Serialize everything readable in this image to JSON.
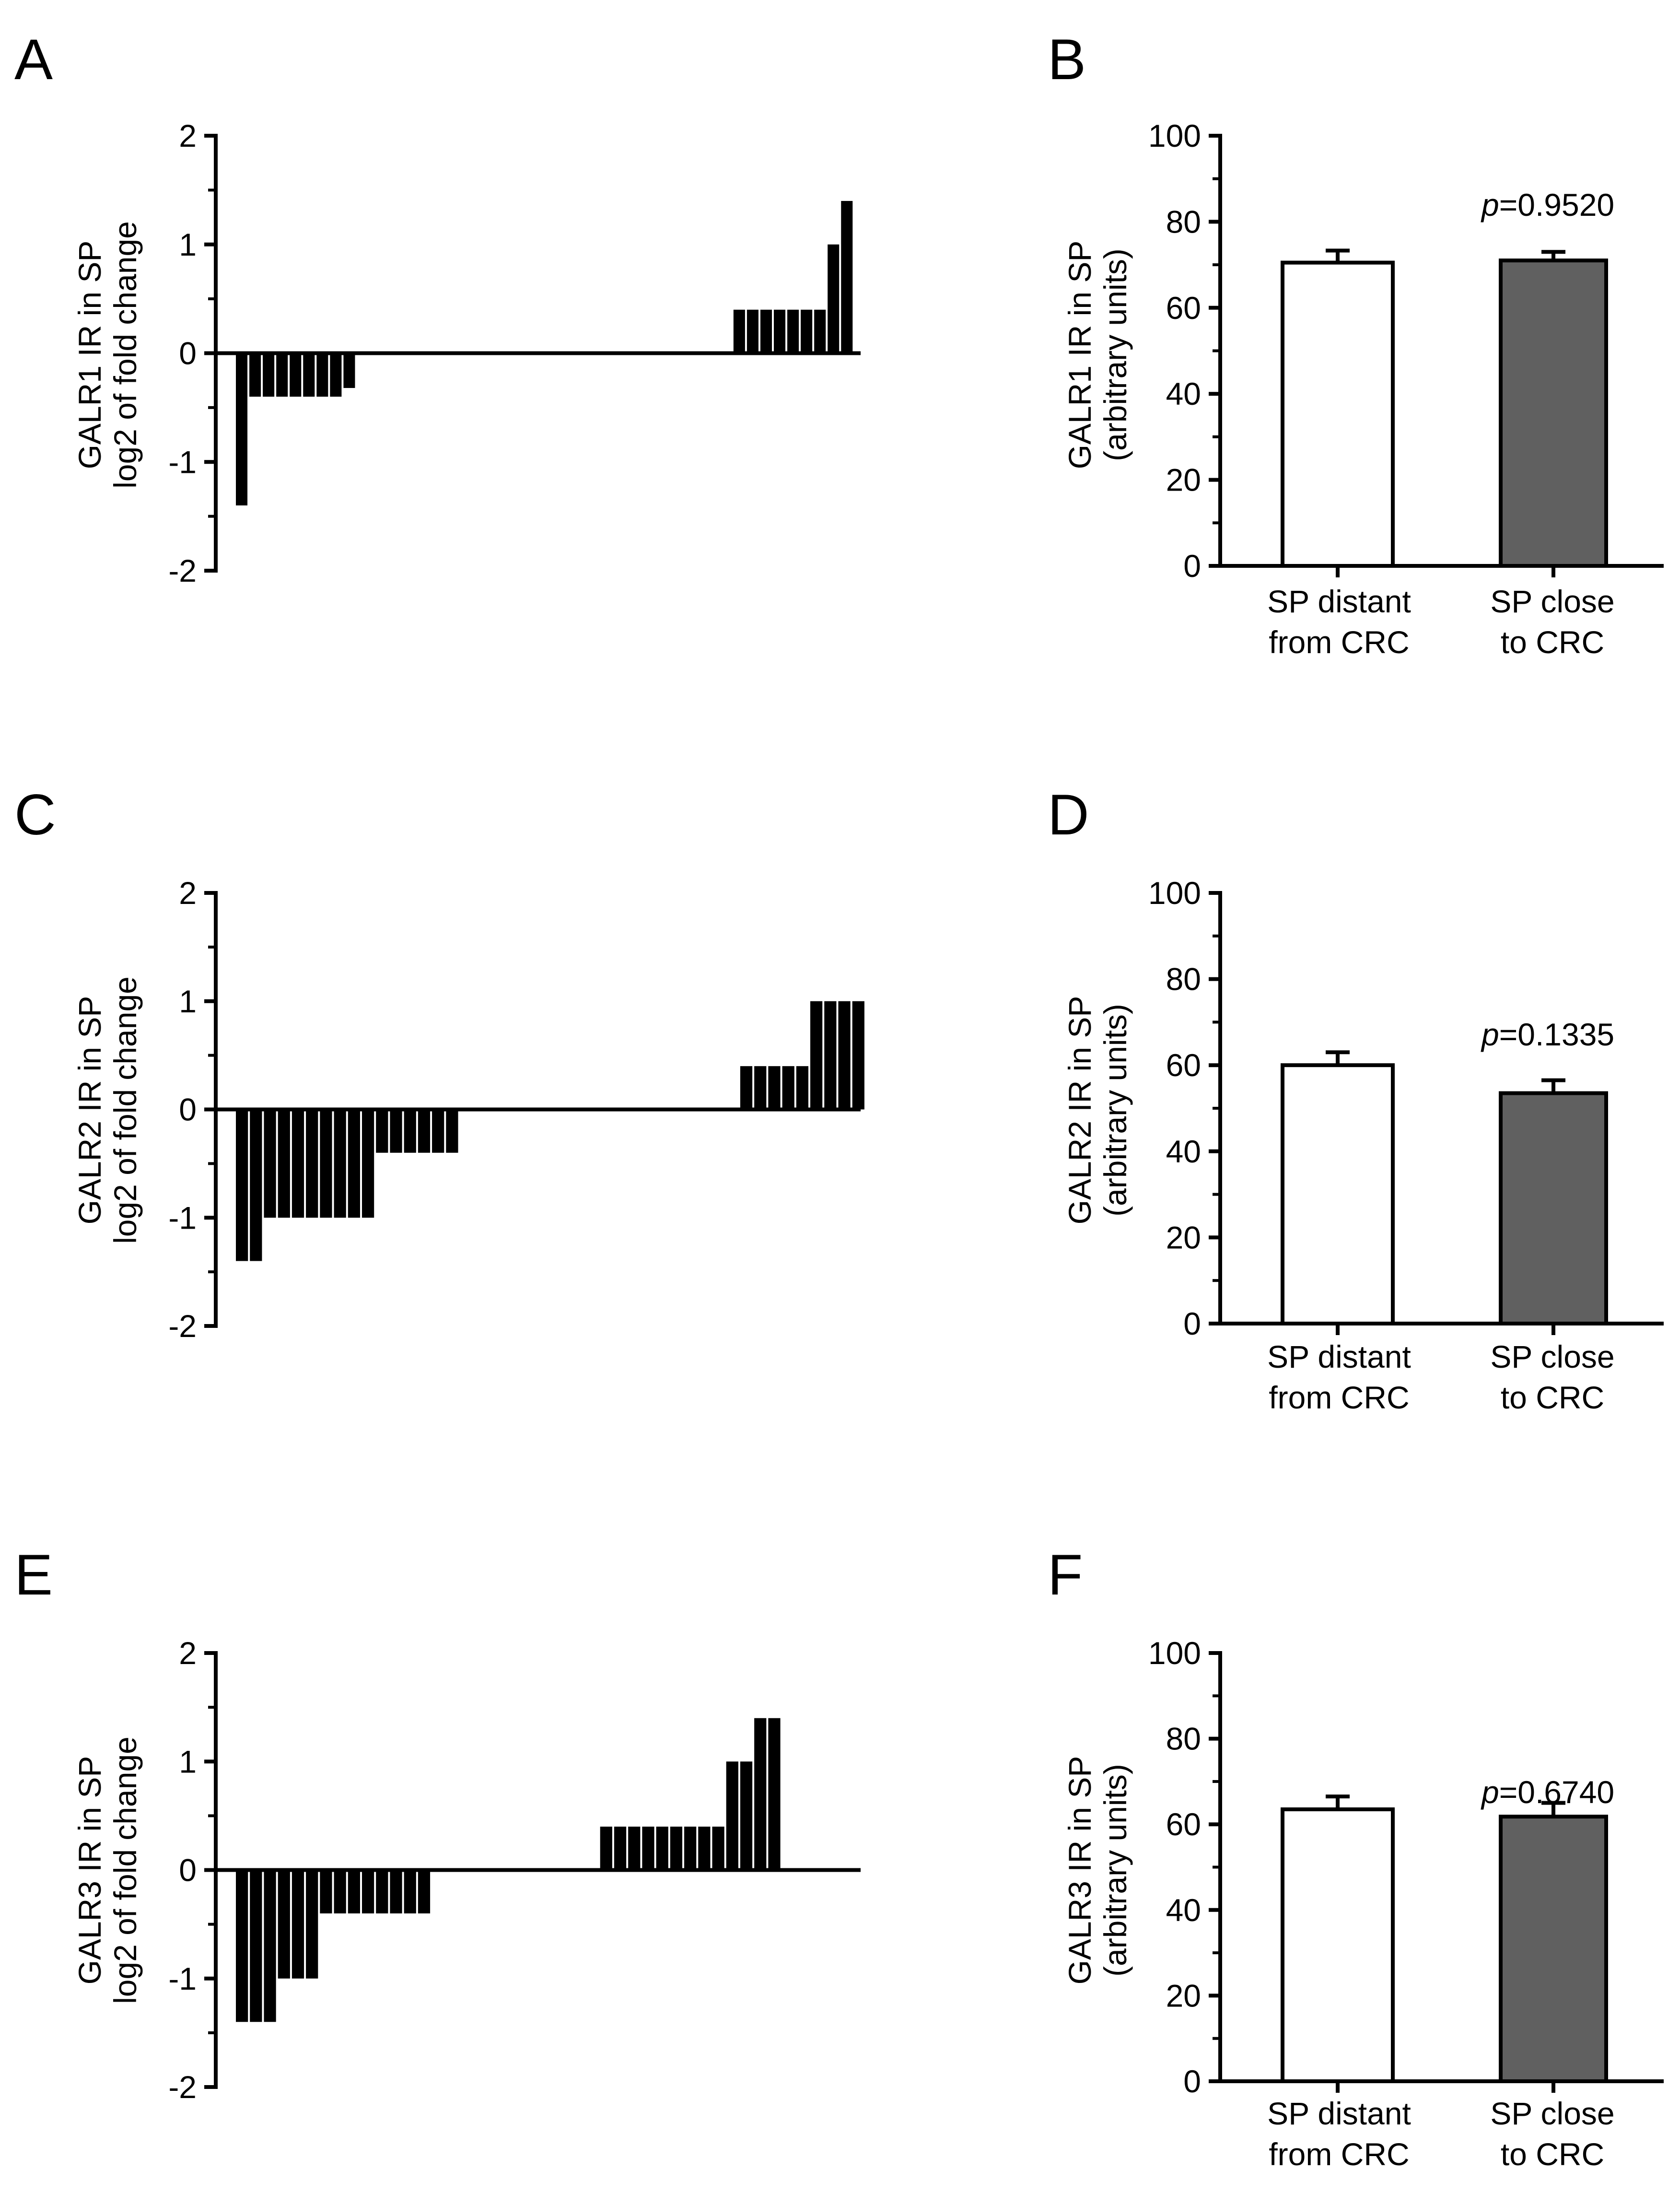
{
  "colors": {
    "waterfall_bar": "#000000",
    "bar_distant": "#ffffff",
    "bar_close": "#606060",
    "axis": "#000000"
  },
  "chart_data": [
    {
      "panel": "A",
      "type": "bar",
      "ylabel_line1": "GALR1 IR in SP",
      "ylabel_line2": "log2 of fold change",
      "ylim": [
        -2,
        2
      ],
      "yticks": [
        2,
        1,
        0,
        -1,
        -2
      ],
      "ytick_labels": [
        "2",
        "1",
        "0",
        "-1",
        "-2"
      ],
      "values": [
        -1.4,
        -0.4,
        -0.4,
        -0.4,
        -0.4,
        -0.4,
        -0.4,
        -0.4,
        -0.32,
        0,
        0,
        0,
        0,
        0,
        0,
        0,
        0,
        0,
        0,
        0,
        0,
        0,
        0,
        0,
        0,
        0,
        0,
        0,
        0,
        0,
        0,
        0,
        0,
        0,
        0,
        0,
        0,
        0.4,
        0.4,
        0.4,
        0.4,
        0.4,
        0.4,
        0.4,
        1.0,
        1.4
      ],
      "grid": false
    },
    {
      "panel": "B",
      "type": "bar",
      "ylabel_line1": "GALR1 IR in SP",
      "ylabel_line2": "(arbitrary units)",
      "ylim": [
        0,
        100
      ],
      "yticks": [
        0,
        20,
        40,
        60,
        80,
        100
      ],
      "ytick_labels": [
        "0",
        "20",
        "40",
        "60",
        "80",
        "100"
      ],
      "categories": [
        {
          "line1": "SP distant",
          "line2": "from CRC"
        },
        {
          "line1": "SP close",
          "line2": "to CRC"
        }
      ],
      "values": [
        70.5,
        71.0
      ],
      "errors": [
        2.8,
        2.0
      ],
      "p_prefix": "p",
      "p_value": "=0.9520",
      "grid": false
    },
    {
      "panel": "C",
      "type": "bar",
      "ylabel_line1": "GALR2 IR in SP",
      "ylabel_line2": "log2 of fold change",
      "ylim": [
        -2,
        2
      ],
      "yticks": [
        2,
        1,
        0,
        -1,
        -2
      ],
      "ytick_labels": [
        "2",
        "1",
        "0",
        "-1",
        "-2"
      ],
      "values": [
        -1.4,
        -1.4,
        -1.0,
        -1.0,
        -1.0,
        -1.0,
        -1.0,
        -1.0,
        -1.0,
        -1.0,
        -0.4,
        -0.4,
        -0.4,
        -0.4,
        -0.4,
        -0.4,
        0,
        0,
        0,
        0,
        0,
        0,
        0,
        0,
        0,
        0,
        0,
        0,
        0,
        0,
        0,
        0,
        0,
        0,
        0,
        0,
        0.4,
        0.4,
        0.4,
        0.4,
        0.4,
        1.0,
        1.0,
        1.0,
        1.0
      ],
      "grid": false
    },
    {
      "panel": "D",
      "type": "bar",
      "ylabel_line1": "GALR2 IR in SP",
      "ylabel_line2": "(arbitrary units)",
      "ylim": [
        0,
        100
      ],
      "yticks": [
        0,
        20,
        40,
        60,
        80,
        100
      ],
      "ytick_labels": [
        "0",
        "20",
        "40",
        "60",
        "80",
        "100"
      ],
      "categories": [
        {
          "line1": "SP distant",
          "line2": "from CRC"
        },
        {
          "line1": "SP close",
          "line2": "to CRC"
        }
      ],
      "values": [
        60.0,
        53.5
      ],
      "errors": [
        3.0,
        3.0
      ],
      "p_prefix": "p",
      "p_value": "=0.1335",
      "grid": false
    },
    {
      "panel": "E",
      "type": "bar",
      "ylabel_line1": "GALR3 IR in SP",
      "ylabel_line2": "log2 of fold change",
      "ylim": [
        -2,
        2
      ],
      "yticks": [
        2,
        1,
        0,
        -1,
        -2
      ],
      "ytick_labels": [
        "2",
        "1",
        "0",
        "-1",
        "-2"
      ],
      "values": [
        -1.4,
        -1.4,
        -1.4,
        -1.0,
        -1.0,
        -1.0,
        -0.4,
        -0.4,
        -0.4,
        -0.4,
        -0.4,
        -0.4,
        -0.4,
        -0.4,
        0,
        0,
        0,
        0,
        0,
        0,
        0,
        0,
        0,
        0,
        0,
        0,
        0.4,
        0.4,
        0.4,
        0.4,
        0.4,
        0.4,
        0.4,
        0.4,
        0.4,
        1.0,
        1.0,
        1.4,
        1.4
      ],
      "grid": false
    },
    {
      "panel": "F",
      "type": "bar",
      "ylabel_line1": "GALR3 IR in SP",
      "ylabel_line2": "(arbitrary units)",
      "ylim": [
        0,
        100
      ],
      "yticks": [
        0,
        20,
        40,
        60,
        80,
        100
      ],
      "ytick_labels": [
        "0",
        "20",
        "40",
        "60",
        "80",
        "100"
      ],
      "categories": [
        {
          "line1": "SP distant",
          "line2": "from CRC"
        },
        {
          "line1": "SP close",
          "line2": "to CRC"
        }
      ],
      "values": [
        63.5,
        61.8
      ],
      "errors": [
        3.0,
        3.2
      ],
      "p_prefix": "p",
      "p_value": "=0.6740",
      "grid": false
    }
  ]
}
